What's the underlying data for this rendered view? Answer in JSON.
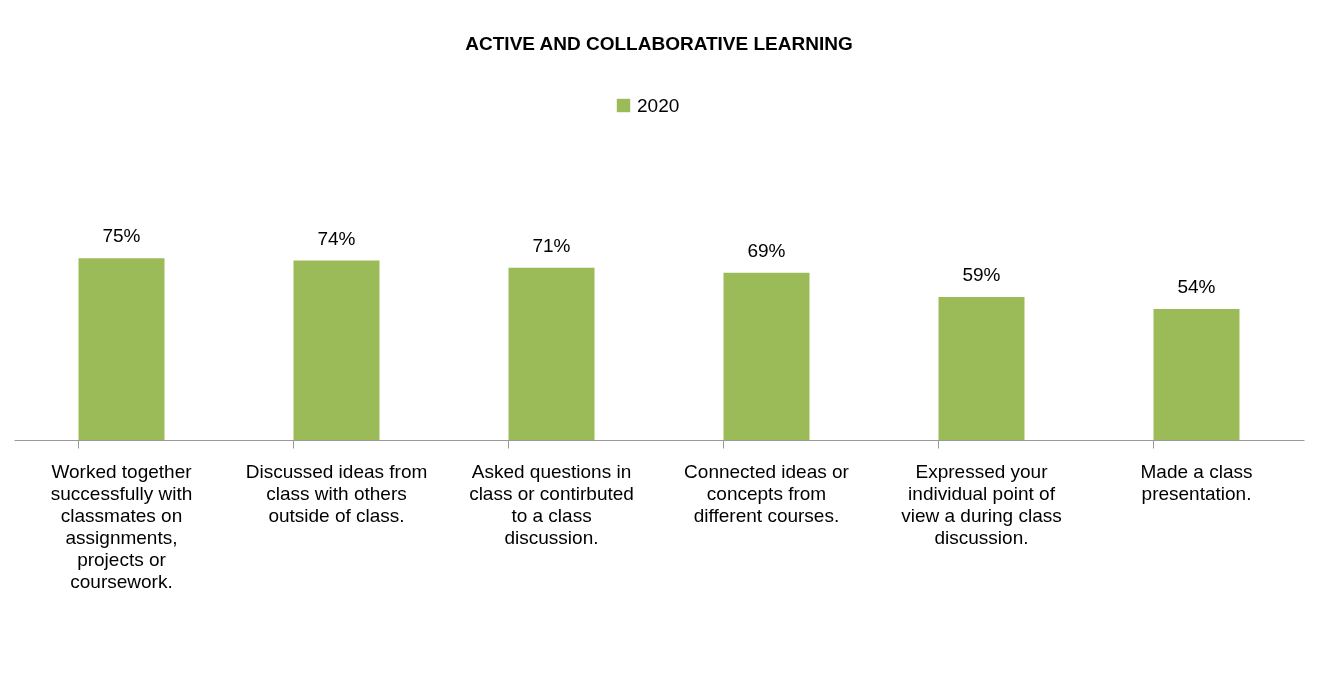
{
  "chart_data": {
    "type": "bar",
    "title": "ACTIVE AND COLLABORATIVE LEARNING",
    "categories": [
      "Worked together successfully with classmates on assignments, projects or coursework.",
      "Discussed ideas from class with others outside of class.",
      "Asked questions in class or contirbuted to a class discussion.",
      "Connected ideas or concepts from different courses.",
      "Expressed your individual point of view a during class discussion.",
      "Made a class presentation."
    ],
    "series": [
      {
        "name": "2020",
        "color": "#9bbb59",
        "values": [
          75,
          74,
          71,
          69,
          59,
          54
        ],
        "value_labels": [
          "75%",
          "74%",
          "71%",
          "69%",
          "59%",
          "54%"
        ]
      }
    ],
    "legend": "top"
  }
}
